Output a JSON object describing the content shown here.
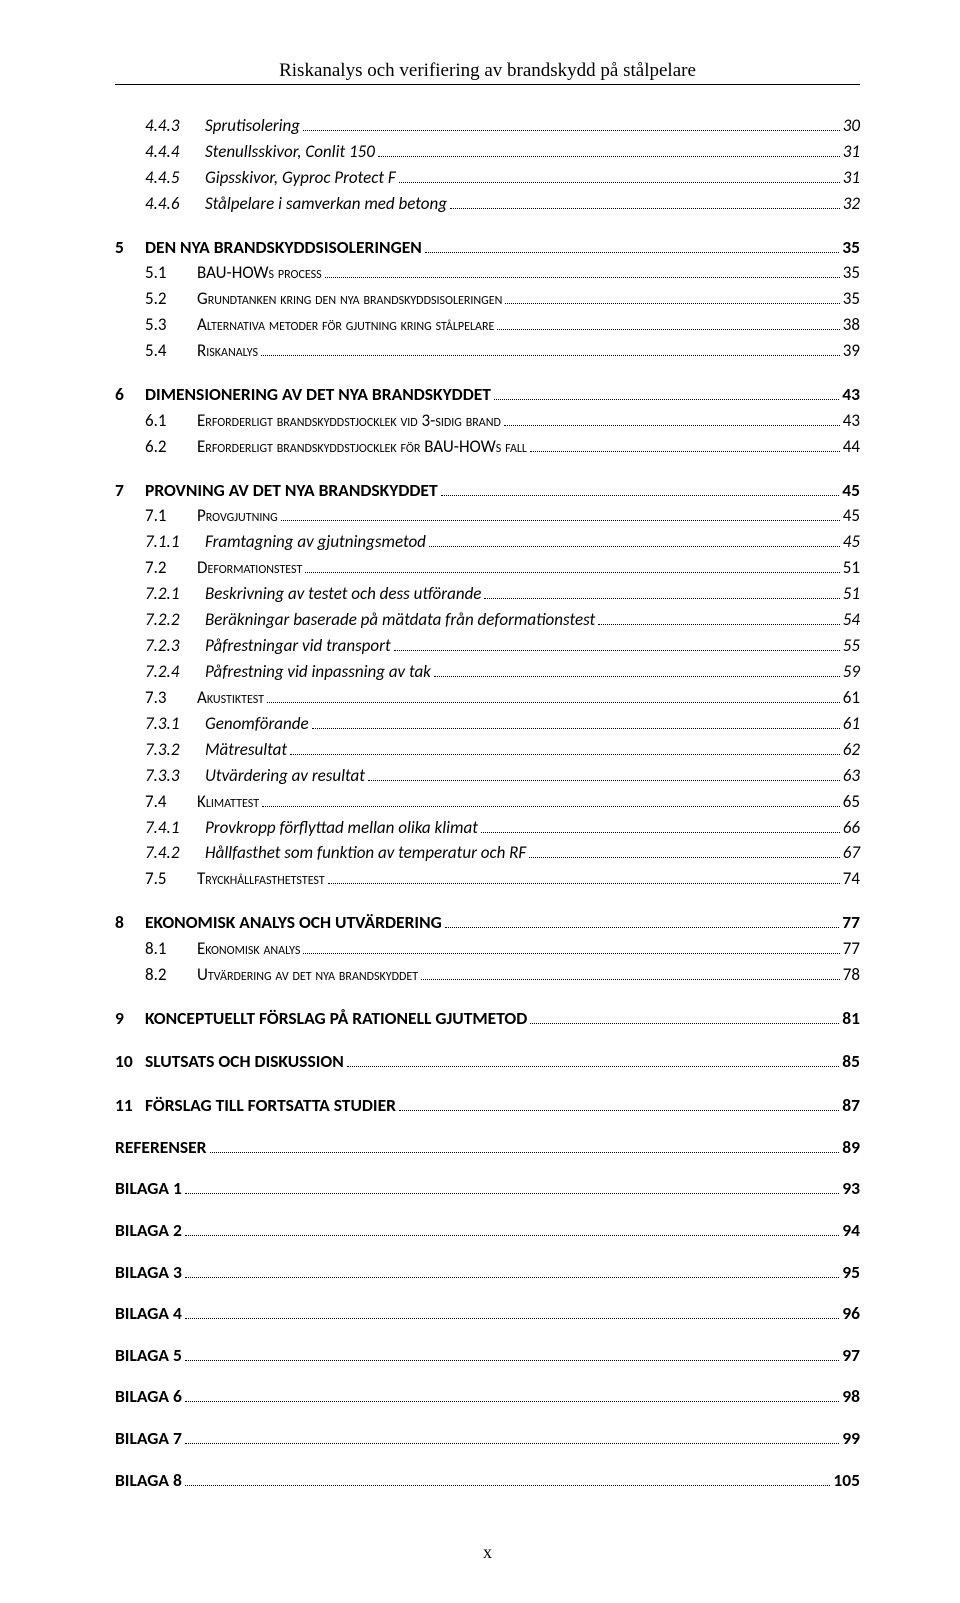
{
  "running_head": "Riskanalys och verifiering av brandskydd på stålpelare",
  "page_number_roman": "x",
  "toc": [
    {
      "level": 3,
      "num": "4.4.3",
      "title": "Sprutisolering",
      "page": "30"
    },
    {
      "level": 3,
      "num": "4.4.4",
      "title": "Stenullsskivor, Conlit 150",
      "page": "31"
    },
    {
      "level": 3,
      "num": "4.4.5",
      "title": "Gipsskivor, Gyproc Protect F",
      "page": "31"
    },
    {
      "level": 3,
      "num": "4.4.6",
      "title": "Stålpelare i samverkan med betong",
      "page": "32"
    },
    {
      "level": 1,
      "num": "5",
      "title": "DEN NYA BRANDSKYDDSISOLERINGEN",
      "page": "35"
    },
    {
      "level": 2,
      "num": "5.1",
      "title": "BAU-HOWs process",
      "sc": true,
      "page": "35"
    },
    {
      "level": 2,
      "num": "5.2",
      "title": "Grundtanken kring den nya brandskyddsisoleringen",
      "sc": true,
      "page": "35"
    },
    {
      "level": 2,
      "num": "5.3",
      "title": "Alternativa metoder för gjutning kring stålpelare",
      "sc": true,
      "page": "38"
    },
    {
      "level": 2,
      "num": "5.4",
      "title": "Riskanalys",
      "sc": true,
      "page": "39"
    },
    {
      "level": 1,
      "num": "6",
      "title": "DIMENSIONERING AV DET NYA BRANDSKYDDET",
      "page": "43"
    },
    {
      "level": 2,
      "num": "6.1",
      "title": "Erforderligt brandskyddstjocklek vid 3-sidig brand",
      "sc": true,
      "page": "43"
    },
    {
      "level": 2,
      "num": "6.2",
      "title": "Erforderligt brandskyddstjocklek för BAU-HOWs fall",
      "sc": true,
      "page": "44"
    },
    {
      "level": 1,
      "num": "7",
      "title": "PROVNING AV DET NYA BRANDSKYDDET",
      "page": "45"
    },
    {
      "level": 2,
      "num": "7.1",
      "title": "Provgjutning",
      "sc": true,
      "page": "45"
    },
    {
      "level": 3,
      "num": "7.1.1",
      "title": "Framtagning av gjutningsmetod",
      "page": "45"
    },
    {
      "level": 2,
      "num": "7.2",
      "title": "Deformationstest",
      "sc": true,
      "page": "51"
    },
    {
      "level": 3,
      "num": "7.2.1",
      "title": "Beskrivning av testet och dess utförande",
      "page": "51"
    },
    {
      "level": 3,
      "num": "7.2.2",
      "title": "Beräkningar baserade på mätdata från deformationstest",
      "page": "54"
    },
    {
      "level": 3,
      "num": "7.2.3",
      "title": "Påfrestningar vid transport",
      "page": "55"
    },
    {
      "level": 3,
      "num": "7.2.4",
      "title": "Påfrestning vid inpassning av tak",
      "page": "59"
    },
    {
      "level": 2,
      "num": "7.3",
      "title": "Akustiktest",
      "sc": true,
      "page": "61"
    },
    {
      "level": 3,
      "num": "7.3.1",
      "title": "Genomförande",
      "page": "61"
    },
    {
      "level": 3,
      "num": "7.3.2",
      "title": "Mätresultat",
      "page": "62"
    },
    {
      "level": 3,
      "num": "7.3.3",
      "title": "Utvärdering av resultat",
      "page": "63"
    },
    {
      "level": 2,
      "num": "7.4",
      "title": "Klimattest",
      "sc": true,
      "page": "65"
    },
    {
      "level": 3,
      "num": "7.4.1",
      "title": "Provkropp förflyttad mellan olika klimat",
      "page": "66"
    },
    {
      "level": 3,
      "num": "7.4.2",
      "title": "Hållfasthet som funktion av temperatur och RF",
      "page": "67"
    },
    {
      "level": 2,
      "num": "7.5",
      "title": "Tryckhållfasthetstest",
      "sc": true,
      "page": "74"
    },
    {
      "level": 1,
      "num": "8",
      "title": "EKONOMISK ANALYS OCH UTVÄRDERING",
      "page": "77"
    },
    {
      "level": 2,
      "num": "8.1",
      "title": "Ekonomisk analys",
      "sc": true,
      "page": "77"
    },
    {
      "level": 2,
      "num": "8.2",
      "title": "Utvärdering av det nya brandskyddet",
      "sc": true,
      "page": "78"
    },
    {
      "level": 1,
      "num": "9",
      "title": "KONCEPTUELLT FÖRSLAG PÅ RATIONELL GJUTMETOD",
      "page": "81"
    },
    {
      "level": 1,
      "num": "10",
      "title": "SLUTSATS OCH DISKUSSION",
      "page": "85"
    },
    {
      "level": 1,
      "num": "11",
      "title": "FÖRSLAG TILL FORTSATTA STUDIER",
      "page": "87"
    },
    {
      "level": 0,
      "num": "",
      "title": "REFERENSER",
      "page": "89"
    },
    {
      "level": 0,
      "num": "",
      "title": "BILAGA 1",
      "page": "93"
    },
    {
      "level": 0,
      "num": "",
      "title": "BILAGA 2",
      "page": "94"
    },
    {
      "level": 0,
      "num": "",
      "title": "BILAGA 3",
      "page": "95"
    },
    {
      "level": 0,
      "num": "",
      "title": "BILAGA 4",
      "page": "96"
    },
    {
      "level": 0,
      "num": "",
      "title": "BILAGA 5",
      "page": "97"
    },
    {
      "level": 0,
      "num": "",
      "title": "BILAGA 6",
      "page": "98"
    },
    {
      "level": 0,
      "num": "",
      "title": "BILAGA 7",
      "page": "99"
    },
    {
      "level": 0,
      "num": "",
      "title": "BILAGA 8",
      "page": "105"
    }
  ]
}
